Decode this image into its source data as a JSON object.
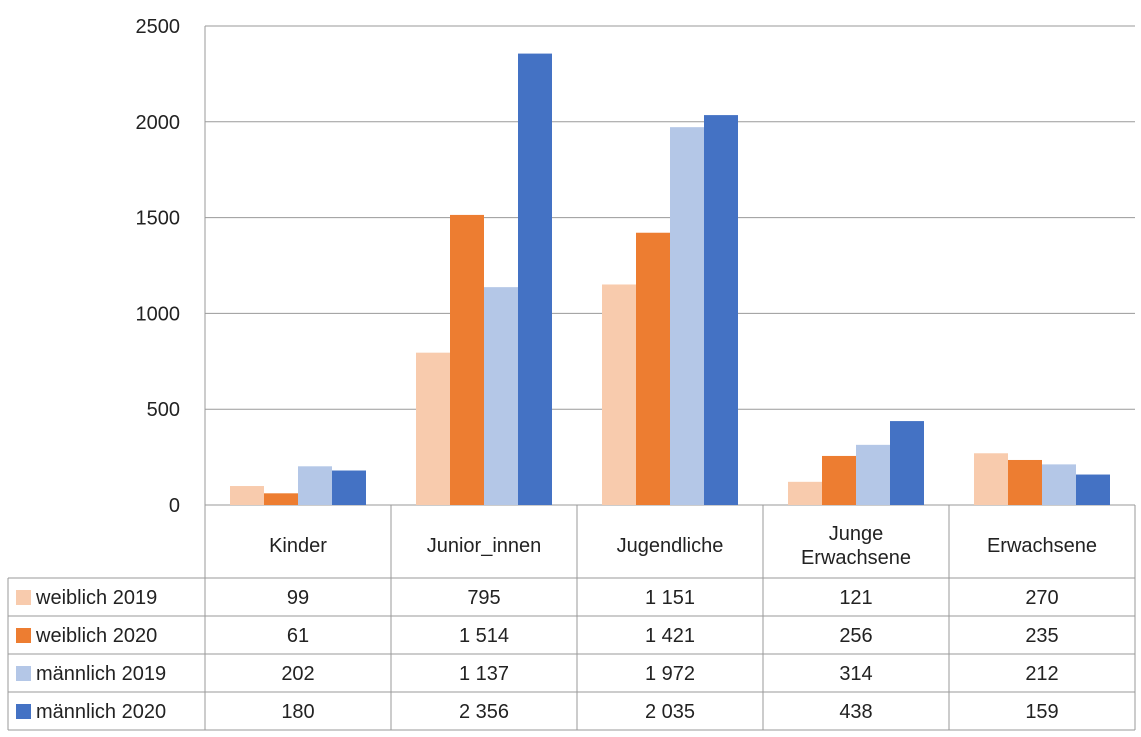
{
  "chart_data": {
    "type": "bar",
    "categories": [
      [
        "Kinder"
      ],
      [
        "Junior_innen"
      ],
      [
        "Jugendliche"
      ],
      [
        "Junge",
        "Erwachsene"
      ],
      [
        "Erwachsene"
      ]
    ],
    "ylim": [
      0,
      2500
    ],
    "yticks": [
      0,
      500,
      1000,
      1500,
      2000,
      2500
    ],
    "ytick_labels": [
      "0",
      "500",
      "1000",
      "1500",
      "2000",
      "2500"
    ],
    "grid": true,
    "data_table": true,
    "series": [
      {
        "name": "weiblich 2019",
        "color": "#F8CBAD",
        "values": [
          99,
          795,
          1151,
          121,
          270
        ],
        "labels": [
          "99",
          "795",
          "1 151",
          "121",
          "270"
        ]
      },
      {
        "name": "weiblich 2020",
        "color": "#ED7D31",
        "values": [
          61,
          1514,
          1421,
          256,
          235
        ],
        "labels": [
          "61",
          "1 514",
          "1 421",
          "256",
          "235"
        ]
      },
      {
        "name": "männlich 2019",
        "color": "#B4C7E7",
        "values": [
          202,
          1137,
          1972,
          314,
          212
        ],
        "labels": [
          "202",
          "1 137",
          "1 972",
          "314",
          "212"
        ]
      },
      {
        "name": "männlich 2020",
        "color": "#4472C4",
        "values": [
          180,
          2356,
          2035,
          438,
          159
        ],
        "labels": [
          "180",
          "2 356",
          "2 035",
          "438",
          "159"
        ]
      }
    ]
  }
}
